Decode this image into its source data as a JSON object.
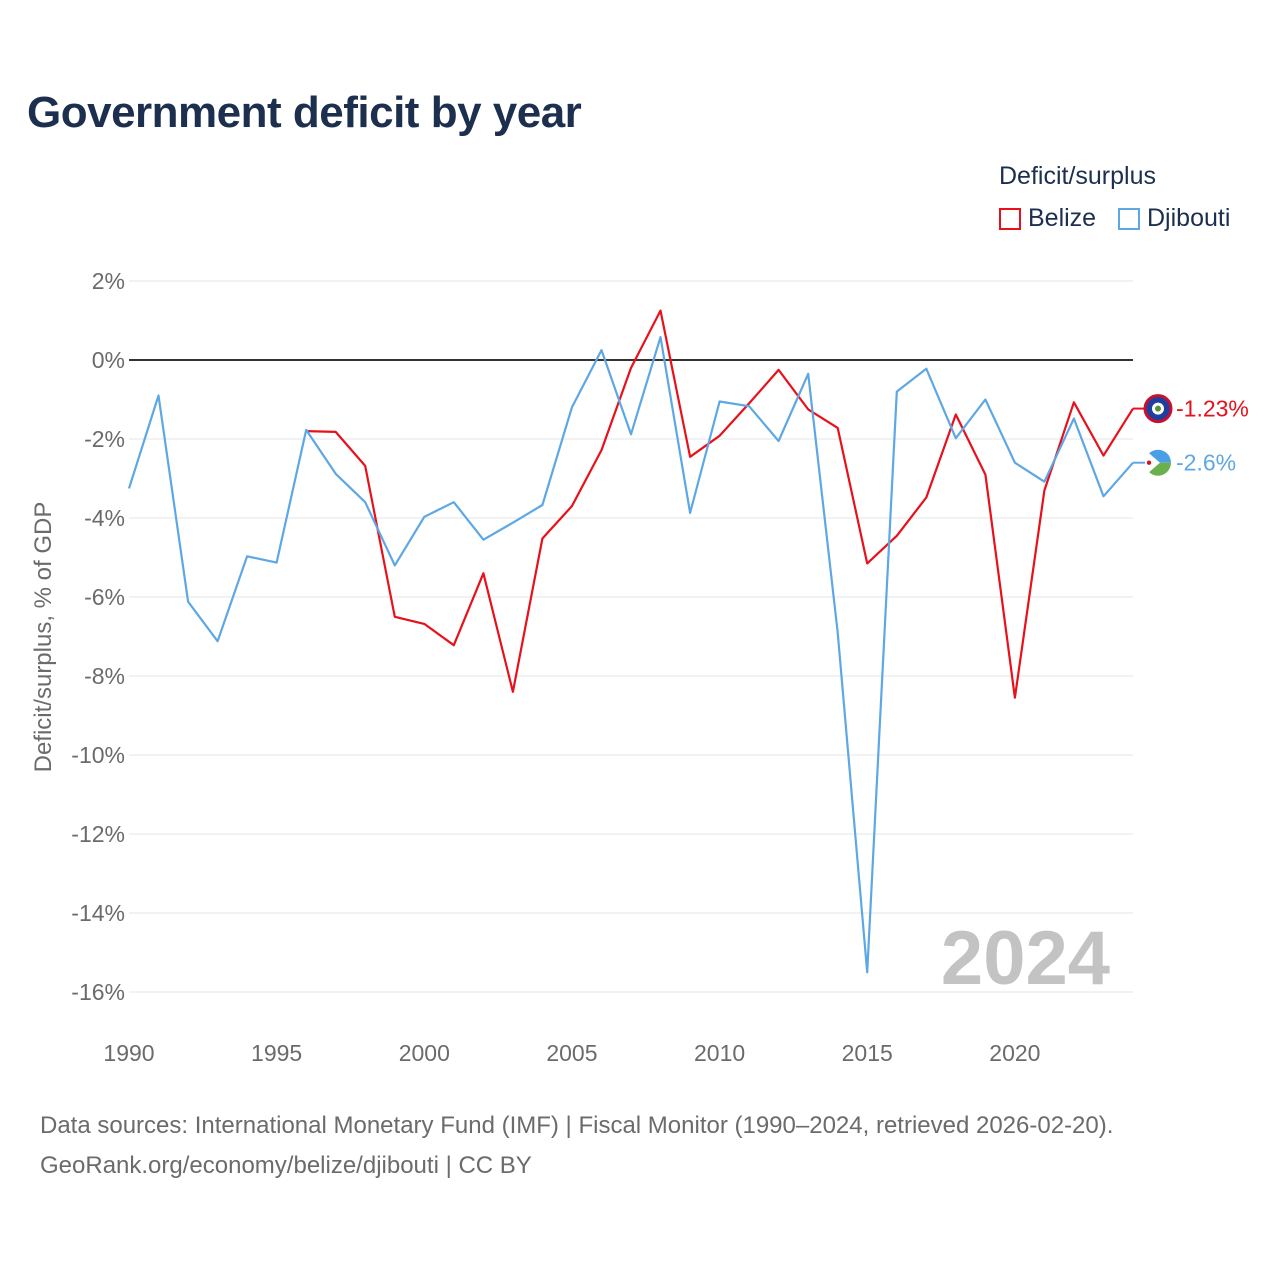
{
  "title": "Government deficit by year",
  "legend": {
    "title": "Deficit/surplus",
    "items": [
      {
        "label": "Belize",
        "color": "#e8101a"
      },
      {
        "label": "Djibouti",
        "color": "#5ea7e5"
      }
    ]
  },
  "watermark_year": "2024",
  "sources": {
    "line1": "Data sources: International Monetary Fund (IMF) | Fiscal Monitor (1990–2024, retrieved 2026-02-20).",
    "line2": "GeoRank.org/economy/belize/djibouti | CC BY"
  },
  "chart_data": {
    "type": "line",
    "title": "Government deficit by year",
    "xlabel": "",
    "ylabel": "Deficit/surplus, % of GDP",
    "xlim": [
      1990,
      2024
    ],
    "ylim": [
      -16,
      2
    ],
    "x_ticks": [
      1990,
      1995,
      2000,
      2005,
      2010,
      2015,
      2020
    ],
    "y_ticks": [
      2,
      0,
      -2,
      -4,
      -6,
      -8,
      -10,
      -12,
      -14,
      -16
    ],
    "y_tick_labels": [
      "2%",
      "0%",
      "-2%",
      "-4%",
      "-6%",
      "-8%",
      "-10%",
      "-12%",
      "-14%",
      "-16%"
    ],
    "x_tick_labels": [
      "1990",
      "1995",
      "2000",
      "2005",
      "2010",
      "2015",
      "2020"
    ],
    "series": [
      {
        "name": "Belize",
        "color": "#e8101a",
        "end_label": "-1.23%",
        "points": [
          [
            1996,
            -1.8
          ],
          [
            1997,
            -1.82
          ],
          [
            1998,
            -2.68
          ],
          [
            1999,
            -6.5
          ],
          [
            2000,
            -6.68
          ],
          [
            2001,
            -7.22
          ],
          [
            2002,
            -5.4
          ],
          [
            2003,
            -8.4
          ],
          [
            2004,
            -4.52
          ],
          [
            2005,
            -3.7
          ],
          [
            2006,
            -2.28
          ],
          [
            2007,
            -0.2
          ],
          [
            2008,
            1.25
          ],
          [
            2009,
            -2.45
          ],
          [
            2010,
            -1.92
          ],
          [
            2011,
            -1.1
          ],
          [
            2012,
            -0.25
          ],
          [
            2013,
            -1.25
          ],
          [
            2014,
            -1.72
          ],
          [
            2015,
            -5.15
          ],
          [
            2016,
            -4.45
          ],
          [
            2017,
            -3.48
          ],
          [
            2018,
            -1.38
          ],
          [
            2019,
            -2.9
          ],
          [
            2020,
            -8.55
          ],
          [
            2021,
            -3.3
          ],
          [
            2022,
            -1.07
          ],
          [
            2023,
            -2.42
          ],
          [
            2024,
            -1.23
          ]
        ]
      },
      {
        "name": "Djibouti",
        "color": "#5ea7e5",
        "end_label": "-2.6%",
        "points": [
          [
            1990,
            -3.25
          ],
          [
            1991,
            -0.9
          ],
          [
            1992,
            -6.12
          ],
          [
            1993,
            -7.12
          ],
          [
            1994,
            -4.97
          ],
          [
            1995,
            -5.13
          ],
          [
            1996,
            -1.77
          ],
          [
            1997,
            -2.88
          ],
          [
            1998,
            -3.6
          ],
          [
            1999,
            -5.2
          ],
          [
            2000,
            -3.97
          ],
          [
            2001,
            -3.6
          ],
          [
            2002,
            -4.55
          ],
          [
            2003,
            -4.12
          ],
          [
            2004,
            -3.67
          ],
          [
            2005,
            -1.2
          ],
          [
            2006,
            0.25
          ],
          [
            2007,
            -1.88
          ],
          [
            2008,
            0.58
          ],
          [
            2009,
            -3.87
          ],
          [
            2010,
            -1.05
          ],
          [
            2011,
            -1.17
          ],
          [
            2012,
            -2.05
          ],
          [
            2013,
            -0.35
          ],
          [
            2014,
            -6.9
          ],
          [
            2015,
            -15.5
          ],
          [
            2016,
            -0.8
          ],
          [
            2017,
            -0.22
          ],
          [
            2018,
            -1.98
          ],
          [
            2019,
            -1.0
          ],
          [
            2020,
            -2.6
          ],
          [
            2021,
            -3.08
          ],
          [
            2022,
            -1.48
          ],
          [
            2023,
            -3.45
          ],
          [
            2024,
            -2.6
          ]
        ]
      }
    ]
  }
}
